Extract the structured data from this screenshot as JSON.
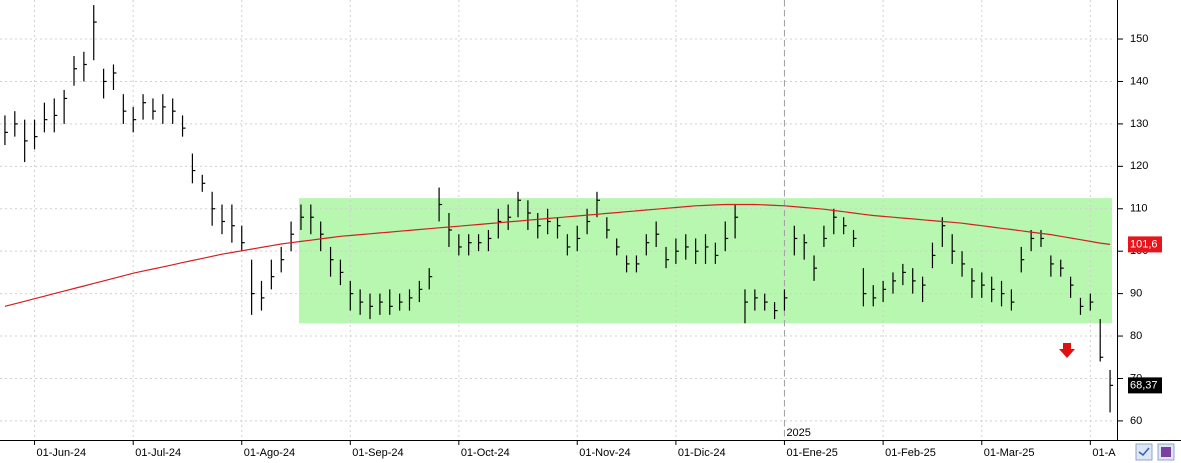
{
  "chart_data": {
    "type": "ohlc",
    "categories": [
      null,
      null,
      null,
      "01-Jun-24",
      null,
      null,
      null,
      null,
      null,
      null,
      null,
      null,
      null,
      "01-Jul-24",
      null,
      null,
      null,
      null,
      null,
      null,
      null,
      null,
      null,
      null,
      "01-Ago-24",
      null,
      null,
      null,
      null,
      null,
      null,
      null,
      null,
      null,
      null,
      "01-Sep-24",
      null,
      null,
      null,
      null,
      null,
      null,
      null,
      null,
      null,
      null,
      "01-Oct-24",
      null,
      null,
      null,
      null,
      null,
      null,
      null,
      null,
      null,
      null,
      null,
      "01-Nov-24",
      null,
      null,
      null,
      null,
      null,
      null,
      null,
      null,
      null,
      "01-Dic-24",
      null,
      null,
      null,
      null,
      null,
      null,
      null,
      null,
      null,
      null,
      "01-Ene-25",
      null,
      null,
      null,
      null,
      null,
      null,
      null,
      null,
      null,
      "01-Feb-25",
      null,
      null,
      null,
      null,
      null,
      null,
      null,
      null,
      null,
      "01-Mar-25",
      null,
      null,
      null,
      null,
      null,
      null,
      null,
      null,
      null,
      null,
      "01-A",
      null,
      null
    ],
    "close": [
      128,
      130,
      126,
      127,
      131,
      132,
      136,
      143,
      144,
      154,
      140,
      142,
      133,
      131,
      135,
      133,
      134,
      133,
      129,
      119,
      116,
      110,
      107,
      106,
      102,
      90,
      89,
      94,
      98,
      104,
      108,
      108,
      104,
      98,
      95,
      90,
      88,
      87,
      88,
      87,
      88,
      89,
      91,
      94,
      111,
      105,
      101,
      102,
      102,
      103,
      107,
      108,
      112,
      109,
      106,
      107,
      106,
      101,
      103,
      107,
      112,
      105,
      101,
      97,
      97,
      102,
      104,
      98,
      100,
      101,
      100,
      101,
      99,
      103,
      108,
      88,
      89,
      88,
      86,
      89,
      103,
      102,
      96,
      103,
      108,
      106,
      103,
      90,
      89,
      91,
      93,
      95,
      93,
      92,
      99,
      106,
      100,
      97,
      93,
      92,
      91,
      90,
      88,
      98,
      103,
      103,
      97,
      96,
      92,
      87,
      88,
      75,
      68.37
    ],
    "high": [
      132,
      133,
      131,
      131,
      135,
      136,
      138,
      146,
      147,
      158,
      143,
      144,
      137,
      134,
      137,
      136,
      137,
      136,
      132,
      123,
      118,
      114,
      111,
      111,
      106,
      98,
      93,
      98,
      101,
      107,
      111,
      111,
      107,
      101,
      98,
      93,
      91,
      90,
      90,
      91,
      90,
      91,
      93,
      96,
      115,
      109,
      104,
      104,
      104,
      105,
      110,
      111,
      114,
      112,
      109,
      110,
      108,
      104,
      106,
      110,
      114,
      108,
      103,
      99,
      99,
      104,
      107,
      101,
      103,
      104,
      103,
      104,
      102,
      107,
      111,
      91,
      91,
      90,
      88,
      91,
      106,
      104,
      99,
      106,
      110,
      108,
      105,
      96,
      92,
      93,
      95,
      97,
      96,
      94,
      102,
      108,
      104,
      100,
      96,
      95,
      94,
      93,
      91,
      101,
      105,
      105,
      99,
      98,
      94,
      89,
      90,
      84,
      72
    ],
    "low": [
      125,
      127,
      121,
      124,
      128,
      128,
      130,
      139,
      140,
      145,
      136,
      138,
      130,
      128,
      131,
      131,
      130,
      130,
      127,
      116,
      114,
      106,
      104,
      102,
      100,
      85,
      86,
      91,
      95,
      100,
      105,
      104,
      100,
      94,
      92,
      86,
      85,
      84,
      85,
      85,
      86,
      86,
      88,
      91,
      107,
      101,
      99,
      99,
      100,
      100,
      103,
      105,
      108,
      105,
      103,
      104,
      103,
      99,
      100,
      104,
      108,
      103,
      99,
      95,
      95,
      99,
      101,
      96,
      97,
      98,
      97,
      97,
      97,
      100,
      103,
      83,
      86,
      86,
      84,
      86,
      99,
      98,
      93,
      101,
      104,
      104,
      101,
      87,
      87,
      88,
      90,
      92,
      90,
      88,
      96,
      101,
      97,
      94,
      89,
      89,
      88,
      87,
      86,
      95,
      100,
      101,
      94,
      94,
      89,
      85,
      86,
      74,
      62
    ],
    "color": "#000000",
    "last_label": {
      "value": 68.37,
      "label": "68,37"
    },
    "ma": {
      "color": "#d42020",
      "last_label": {
        "value": 101.6,
        "label": "101,6"
      },
      "values": [
        87.0,
        87.6,
        88.2,
        88.8,
        89.4,
        90.0,
        90.6,
        91.2,
        91.8,
        92.4,
        93.0,
        93.6,
        94.2,
        94.8,
        95.3,
        95.8,
        96.3,
        96.8,
        97.3,
        97.8,
        98.3,
        98.8,
        99.3,
        99.7,
        100.1,
        100.5,
        100.9,
        101.3,
        101.7,
        102.0,
        102.3,
        102.6,
        102.9,
        103.2,
        103.5,
        103.7,
        103.9,
        104.1,
        104.3,
        104.5,
        104.7,
        104.9,
        105.1,
        105.3,
        105.5,
        105.7,
        105.9,
        106.1,
        106.3,
        106.5,
        106.7,
        106.9,
        107.1,
        107.3,
        107.5,
        107.7,
        107.9,
        108.1,
        108.3,
        108.5,
        108.7,
        108.9,
        109.1,
        109.3,
        109.5,
        109.7,
        109.9,
        110.1,
        110.3,
        110.5,
        110.7,
        110.8,
        110.9,
        111.0,
        111.0,
        111.0,
        111.0,
        110.9,
        110.8,
        110.7,
        110.5,
        110.3,
        110.1,
        109.9,
        109.6,
        109.3,
        109.0,
        108.7,
        108.4,
        108.2,
        108.0,
        107.8,
        107.6,
        107.4,
        107.2,
        107.0,
        106.8,
        106.6,
        106.3,
        106.0,
        105.7,
        105.4,
        105.1,
        104.8,
        104.5,
        104.2,
        103.9,
        103.5,
        103.1,
        102.7,
        102.3,
        101.9,
        101.6
      ]
    },
    "band": {
      "low": 83,
      "high": 112.5,
      "color": "#b8f7b0"
    },
    "year_label": "2025",
    "ylim": [
      55.5,
      159.2
    ],
    "yticks": [
      60,
      70,
      80,
      90,
      100,
      110,
      120,
      130,
      140,
      150
    ],
    "grid": true
  }
}
